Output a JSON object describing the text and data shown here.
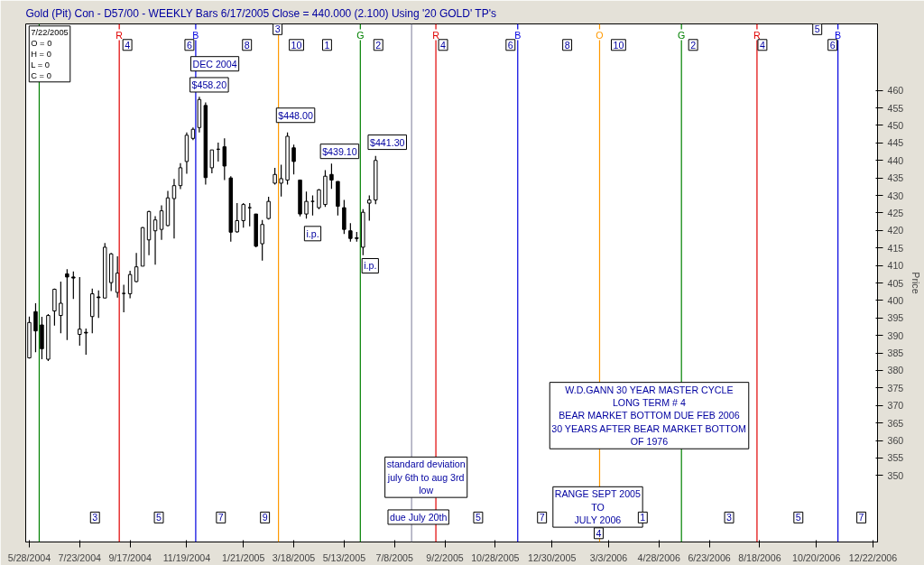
{
  "chart_data": {
    "type": "candlestick",
    "title": "Gold (Pit) Con - D57/00  - WEEKLY Bars  6/17/2005 Close = 440.000 (2.100)          Using '20 GOLD' TP's",
    "ylabel": "Price",
    "x": [
      "2004-05-28",
      "2004-06-04",
      "2004-06-11",
      "2004-06-18",
      "2004-06-25",
      "2004-07-02",
      "2004-07-09",
      "2004-07-16",
      "2004-07-23",
      "2004-07-30",
      "2004-08-06",
      "2004-08-13",
      "2004-08-20",
      "2004-08-27",
      "2004-09-03",
      "2004-09-10",
      "2004-09-17",
      "2004-09-24",
      "2004-10-01",
      "2004-10-08",
      "2004-10-15",
      "2004-10-22",
      "2004-10-29",
      "2004-11-05",
      "2004-11-12",
      "2004-11-19",
      "2004-11-26",
      "2004-12-03",
      "2004-12-10",
      "2004-12-17",
      "2004-12-24",
      "2004-12-31",
      "2005-01-07",
      "2005-01-14",
      "2005-01-21",
      "2005-01-28",
      "2005-02-04",
      "2005-02-11",
      "2005-02-18",
      "2005-02-25",
      "2005-03-04",
      "2005-03-11",
      "2005-03-18",
      "2005-03-25",
      "2005-04-01",
      "2005-04-08",
      "2005-04-15",
      "2005-04-22",
      "2005-04-29",
      "2005-05-06",
      "2005-05-13",
      "2005-05-20",
      "2005-05-27",
      "2005-06-03",
      "2005-06-10",
      "2005-06-17"
    ],
    "ohlc": [
      [
        383.6,
        395.4,
        383.4,
        393.7
      ],
      [
        396.8,
        399.2,
        385.2,
        391.3
      ],
      [
        393.0,
        395.3,
        383.2,
        386.2
      ],
      [
        383.2,
        396.1,
        382.7,
        395.7
      ],
      [
        397.0,
        403.4,
        392.8,
        403.2
      ],
      [
        395.7,
        405.4,
        390.6,
        399.2
      ],
      [
        407.6,
        408.9,
        388.7,
        406.7
      ],
      [
        406.7,
        408.3,
        400.4,
        406.4
      ],
      [
        390.3,
        406.7,
        387.1,
        391.8
      ],
      [
        390.9,
        392.0,
        384.5,
        390.7
      ],
      [
        395.4,
        403.4,
        390.6,
        401.9
      ],
      [
        401.0,
        402.9,
        395.0,
        400.8
      ],
      [
        400.7,
        416.4,
        400.7,
        415.2
      ],
      [
        405.1,
        413.6,
        402.7,
        413.3
      ],
      [
        402.3,
        412.6,
        400.8,
        407.8
      ],
      [
        402.0,
        404.5,
        396.6,
        402.0
      ],
      [
        401.9,
        408.5,
        400.6,
        407.4
      ],
      [
        405.4,
        413.6,
        405.2,
        409.6
      ],
      [
        409.8,
        421.0,
        409.8,
        420.8
      ],
      [
        417.3,
        425.6,
        412.9,
        425.4
      ],
      [
        419.9,
        424.1,
        410.2,
        423.0
      ],
      [
        420.3,
        427.2,
        417.3,
        425.6
      ],
      [
        421.4,
        431.3,
        421.2,
        429.3
      ],
      [
        429.1,
        434.7,
        417.7,
        432.8
      ],
      [
        432.8,
        439.2,
        431.8,
        437.9
      ],
      [
        439.7,
        448.0,
        436.2,
        447.2
      ],
      [
        446.3,
        449.4,
        445.8,
        448.9
      ],
      [
        449.4,
        458.2,
        448.0,
        457.4
      ],
      [
        455.7,
        456.6,
        433.1,
        435.1
      ],
      [
        437.9,
        443.0,
        436.3,
        443.0
      ],
      [
        443.2,
        445.1,
        439.7,
        443.2
      ],
      [
        443.9,
        446.3,
        434.4,
        438.4
      ],
      [
        435.0,
        435.5,
        416.8,
        419.5
      ],
      [
        419.6,
        427.8,
        419.4,
        422.8
      ],
      [
        422.8,
        427.8,
        420.8,
        427.4
      ],
      [
        426.5,
        427.8,
        421.2,
        426.5
      ],
      [
        424.7,
        424.7,
        415.2,
        415.5
      ],
      [
        416.2,
        423.0,
        411.4,
        421.7
      ],
      [
        423.4,
        429.6,
        423.1,
        428.3
      ],
      [
        433.5,
        437.9,
        433.1,
        436.0
      ],
      [
        433.5,
        438.8,
        429.7,
        434.8
      ],
      [
        434.4,
        448.0,
        433.1,
        446.9
      ],
      [
        443.6,
        444.5,
        436.0,
        439.7
      ],
      [
        434.4,
        434.4,
        424.0,
        424.7
      ],
      [
        424.7,
        431.1,
        423.4,
        428.3
      ],
      [
        428.3,
        430.0,
        424.3,
        428.3
      ],
      [
        426.5,
        431.8,
        426.1,
        431.6
      ],
      [
        427.4,
        437.2,
        426.7,
        435.5
      ],
      [
        436.0,
        439.1,
        431.9,
        434.4
      ],
      [
        434.0,
        434.0,
        424.3,
        426.9
      ],
      [
        426.5,
        428.7,
        419.0,
        420.3
      ],
      [
        419.9,
        422.1,
        416.8,
        417.7
      ],
      [
        417.9,
        419.6,
        416.8,
        417.7
      ],
      [
        415.2,
        426.1,
        412.9,
        425.2
      ],
      [
        427.8,
        430.0,
        422.8,
        428.7
      ],
      [
        428.7,
        441.3,
        427.5,
        440.0
      ]
    ],
    "color": "#000000",
    "xlim": [
      "2004-05-24",
      "2006-12-27"
    ],
    "xticks": [
      {
        "value": "2004-05-28",
        "label": "5/28/2004"
      },
      {
        "value": "2004-07-23",
        "label": "7/23/2004"
      },
      {
        "value": "2004-09-17",
        "label": "9/17/2004"
      },
      {
        "value": "2004-11-19",
        "label": "11/19/2004"
      },
      {
        "value": "2005-01-21",
        "label": "1/21/2005"
      },
      {
        "value": "2005-03-18",
        "label": "3/18/2005"
      },
      {
        "value": "2005-05-13",
        "label": "5/13/2005"
      },
      {
        "value": "2005-07-08",
        "label": "7/8/2005"
      },
      {
        "value": "2005-09-02",
        "label": "9/2/2005"
      },
      {
        "value": "2005-10-28",
        "label": "10/28/2005"
      },
      {
        "value": "2005-12-30",
        "label": "12/30/2005"
      },
      {
        "value": "2006-03-03",
        "label": "3/3/2006"
      },
      {
        "value": "2006-04-28",
        "label": "4/28/2006"
      },
      {
        "value": "2006-06-23",
        "label": "6/23/2006"
      },
      {
        "value": "2006-08-18",
        "label": "8/18/2006"
      },
      {
        "value": "2006-10-20",
        "label": "10/20/2006"
      },
      {
        "value": "2006-12-22",
        "label": "12/22/2006"
      }
    ],
    "ylim": [
      331,
      479
    ],
    "yticks": [
      350,
      355,
      360,
      365,
      370,
      375,
      380,
      385,
      390,
      395,
      400,
      405,
      410,
      415,
      420,
      425,
      430,
      435,
      440,
      445,
      450,
      455,
      460
    ],
    "ref_lines": [
      {
        "axis": "x",
        "value": "2004-06-08",
        "label": null,
        "color": "#008000"
      },
      {
        "axis": "x",
        "value": "2004-09-05",
        "label": "R",
        "color": "#e00000"
      },
      {
        "axis": "x",
        "value": "2004-11-29",
        "label": "B",
        "color": "#0000e0"
      },
      {
        "axis": "x",
        "value": "2005-03-01",
        "label": null,
        "color": "#ff9900"
      },
      {
        "axis": "x",
        "value": "2005-05-31",
        "label": "G",
        "color": "#008000"
      },
      {
        "axis": "x",
        "value": "2005-07-27",
        "label": null,
        "color": "#9090a8"
      },
      {
        "axis": "x",
        "value": "2005-08-23",
        "label": "R",
        "color": "#e00000"
      },
      {
        "axis": "x",
        "value": "2005-11-22",
        "label": "B",
        "color": "#0000e0"
      },
      {
        "axis": "x",
        "value": "2006-02-21",
        "label": "O",
        "color": "#ff9900"
      },
      {
        "axis": "x",
        "value": "2006-05-23",
        "label": "G",
        "color": "#008000"
      },
      {
        "axis": "x",
        "value": "2006-08-15",
        "label": "R",
        "color": "#e00000"
      },
      {
        "axis": "x",
        "value": "2006-11-13",
        "label": "B",
        "color": "#0000e0"
      }
    ],
    "annotations": [
      "7/22/2005\nO = 0\nH = 0\nL = 0\nC = 0",
      "DEC 2004",
      {
        "text": "$458.20",
        "x": "2004-12-14",
        "y": 461.6
      },
      {
        "text": "$448.00",
        "x": "2005-03-20",
        "y": 452.9
      },
      {
        "text": "$439.10",
        "x": "2005-05-08",
        "y": 442.6
      },
      {
        "text": "$441.30",
        "x": "2005-06-30",
        "y": 445.2
      },
      {
        "text": "i.p.",
        "x": "2005-04-08",
        "y": 419.1
      },
      {
        "text": "i.p.",
        "x": "2005-06-11",
        "y": 409.9
      },
      "standard deviation\njuly 6th to aug 3rd\nlow",
      "due July 20th",
      {
        "text": "RANGE SEPT 2005\nTO\nJULY 2006",
        "x": "2006-02-19",
        "y": 341
      },
      "W.D.GANN 30 YEAR MASTER CYCLE\nLONG TERM # 4\nBEAR MARKET BOTTOM DUE FEB 2006\n30 YEARS AFTER BEAR MARKET BOTTOM\nOF 1976",
      {
        "text": "4",
        "x": "2004-09-14",
        "y": 473
      },
      {
        "text": "6",
        "x": "2004-11-22",
        "y": 473
      },
      {
        "text": "8",
        "x": "2005-01-25",
        "y": 473
      },
      {
        "text": "10",
        "x": "2005-03-21",
        "y": 473
      },
      {
        "text": "1",
        "x": "2005-04-24",
        "y": 473
      },
      {
        "text": "2",
        "x": "2005-06-20",
        "y": 473
      },
      {
        "text": "4",
        "x": "2005-08-31",
        "y": 473
      },
      {
        "text": "6",
        "x": "2005-11-14",
        "y": 473
      },
      {
        "text": "8",
        "x": "2006-01-16",
        "y": 473
      },
      {
        "text": "10",
        "x": "2006-03-14",
        "y": 473
      },
      {
        "text": "2",
        "x": "2006-06-05",
        "y": 473
      },
      {
        "text": "4",
        "x": "2006-08-21",
        "y": 473
      },
      {
        "text": "6",
        "x": "2006-11-07",
        "y": 473
      },
      {
        "text": "3",
        "x": "2005-02-28",
        "y": 477.5
      },
      {
        "text": "5",
        "x": "2006-10-21",
        "y": 477.5
      },
      {
        "text": "3",
        "x": "2004-08-09",
        "y": 338
      },
      {
        "text": "5",
        "x": "2004-10-19",
        "y": 338
      },
      {
        "text": "7",
        "x": "2004-12-27",
        "y": 338
      },
      {
        "text": "9",
        "x": "2005-02-14",
        "y": 338
      },
      {
        "text": "5",
        "x": "2005-10-09",
        "y": 338
      },
      {
        "text": "7",
        "x": "2005-12-19",
        "y": 338
      },
      {
        "text": "1",
        "x": "2006-04-10",
        "y": 338
      },
      {
        "text": "3",
        "x": "2006-07-15",
        "y": 338
      },
      {
        "text": "5",
        "x": "2006-09-30",
        "y": 338
      },
      {
        "text": "7",
        "x": "2006-12-09",
        "y": 338
      },
      {
        "text": "4",
        "x": "2006-02-20",
        "y": 333.5
      }
    ]
  }
}
